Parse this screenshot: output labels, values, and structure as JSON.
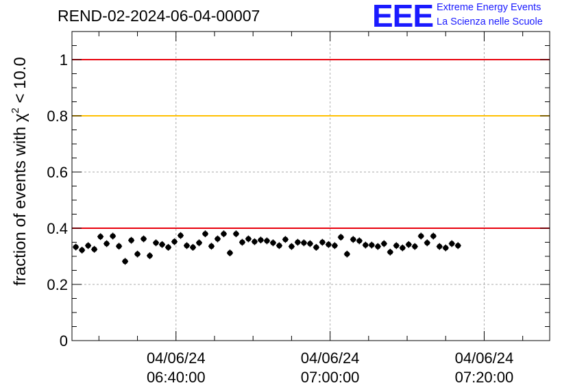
{
  "title": "REND-02-2024-06-04-00007",
  "logo": {
    "text": "EEE",
    "line1": "Extreme Energy Events",
    "line2": "La Scienza nelle Scuole",
    "color": "#1a1aff"
  },
  "chart_data": {
    "type": "scatter",
    "ylabel_text": "fraction of events with χ",
    "ylabel_sup": "2",
    "ylabel_tail": " < 10.0",
    "ylim": [
      0,
      1.1
    ],
    "xlim": [
      "06:26:30",
      "07:28:30"
    ],
    "y_ticks": [
      {
        "v": 0,
        "label": "0"
      },
      {
        "v": 0.2,
        "label": "0.2"
      },
      {
        "v": 0.4,
        "label": "0.4"
      },
      {
        "v": 0.6,
        "label": "0.6"
      },
      {
        "v": 0.8,
        "label": "0.8"
      },
      {
        "v": 1,
        "label": "1"
      }
    ],
    "x_ticks": [
      {
        "t": "06:40:00",
        "date": "04/06/24",
        "time": "06:40:00"
      },
      {
        "t": "07:00:00",
        "date": "04/06/24",
        "time": "07:00:00"
      },
      {
        "t": "07:20:00",
        "date": "04/06/24",
        "time": "07:20:00"
      }
    ],
    "x_minor_ticks": [
      "06:30:00",
      "06:35:00",
      "06:45:00",
      "06:50:00",
      "06:55:00",
      "07:05:00",
      "07:10:00",
      "07:15:00",
      "07:25:00"
    ],
    "grid": true,
    "reference_lines": [
      {
        "y": 1.0,
        "color": "#e8000b"
      },
      {
        "y": 0.8,
        "color": "#ffc000"
      },
      {
        "y": 0.4,
        "color": "#e8000b"
      }
    ],
    "y_error": 0.012,
    "x_half_width_min": 0.4,
    "start_time": "06:27:00",
    "step_min": 0.8,
    "values": [
      0.333,
      0.322,
      0.338,
      0.325,
      0.37,
      0.345,
      0.372,
      0.336,
      0.282,
      0.357,
      0.308,
      0.362,
      0.302,
      0.348,
      0.342,
      0.332,
      0.352,
      0.374,
      0.338,
      0.332,
      0.348,
      0.38,
      0.336,
      0.362,
      0.38,
      0.312,
      0.38,
      0.35,
      0.362,
      0.352,
      0.358,
      0.355,
      0.348,
      0.338,
      0.36,
      0.335,
      0.35,
      0.348,
      0.345,
      0.332,
      0.35,
      0.342,
      0.338,
      0.368,
      0.308,
      0.36,
      0.355,
      0.34,
      0.34,
      0.335,
      0.345,
      0.315,
      0.338,
      0.33,
      0.342,
      0.335,
      0.372,
      0.348,
      0.372,
      0.335,
      0.33,
      0.345,
      0.338
    ]
  }
}
